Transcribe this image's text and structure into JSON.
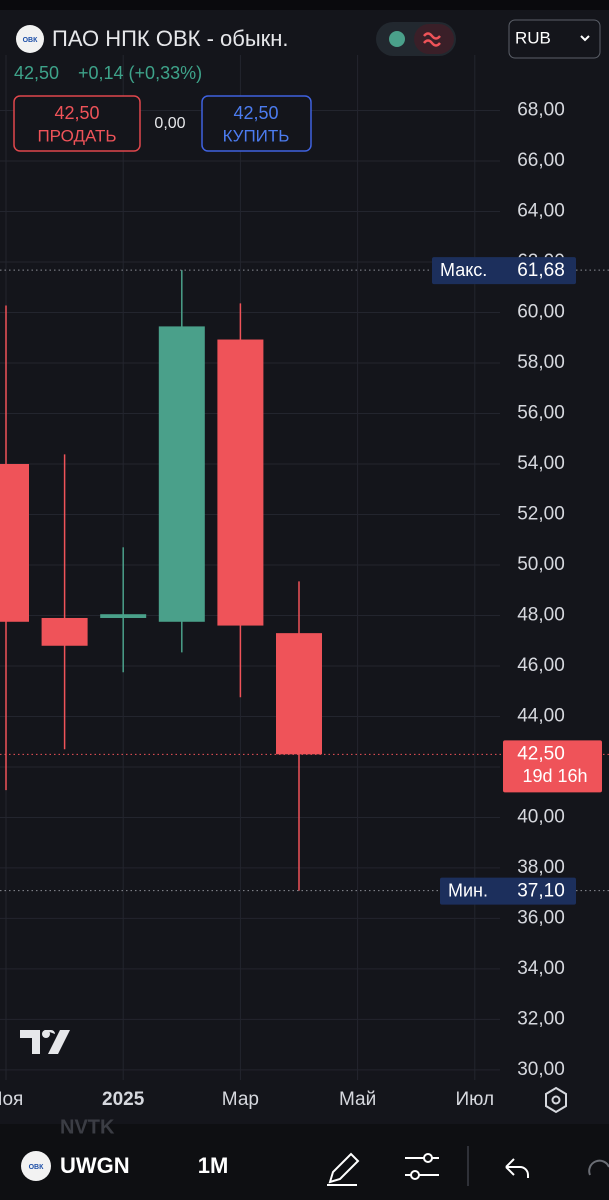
{
  "header": {
    "logo": "ОВК",
    "title": "ПАО НПК ОВК - обыкн.",
    "currency": "RUB",
    "price": "42,50",
    "change": "+0,14 (+0,33%)"
  },
  "trade": {
    "sell_price": "42,50",
    "sell_label": "ПРОДАТЬ",
    "spread": "0,00",
    "buy_price": "42,50",
    "buy_label": "КУПИТЬ"
  },
  "chart_data": {
    "type": "candlestick",
    "categories": [
      "Ноя",
      null,
      "2025",
      null,
      "Мар",
      null,
      "Май",
      null,
      "Июл"
    ],
    "open": [
      54.0,
      47.9,
      47.9,
      47.75,
      58.93,
      47.3,
      null,
      null,
      null
    ],
    "high": [
      60.28,
      54.38,
      50.7,
      61.68,
      60.36,
      49.35,
      null,
      null,
      null
    ],
    "low": [
      41.08,
      42.7,
      45.75,
      46.54,
      44.76,
      37.1,
      null,
      null,
      null
    ],
    "close": [
      47.75,
      46.8,
      48.05,
      59.45,
      47.6,
      42.5,
      null,
      null,
      null
    ],
    "up_color": "#4aa08a",
    "down_color": "#ef5359",
    "ylim": [
      29.6,
      70.2
    ],
    "yticks": [
      {
        "value": 30,
        "label": "30,00"
      },
      {
        "value": 32,
        "label": "32,00"
      },
      {
        "value": 34,
        "label": "34,00"
      },
      {
        "value": 36,
        "label": "36,00"
      },
      {
        "value": 38,
        "label": "38,00"
      },
      {
        "value": 40,
        "label": "40,00"
      },
      {
        "value": 42,
        "label": "42,00"
      },
      {
        "value": 44,
        "label": "44,00"
      },
      {
        "value": 46,
        "label": "46,00"
      },
      {
        "value": 48,
        "label": "48,00"
      },
      {
        "value": 50,
        "label": "50,00"
      },
      {
        "value": 52,
        "label": "52,00"
      },
      {
        "value": 54,
        "label": "54,00"
      },
      {
        "value": 56,
        "label": "56,00"
      },
      {
        "value": 58,
        "label": "58,00"
      },
      {
        "value": 60,
        "label": "60,00"
      },
      {
        "value": 62,
        "label": "62,00"
      },
      {
        "value": 64,
        "label": "64,00"
      },
      {
        "value": 66,
        "label": "66,00"
      },
      {
        "value": 68,
        "label": "68,00"
      }
    ],
    "grid": true,
    "max": {
      "label": "Макс.",
      "value": {
        "value": 61.68,
        "label": "61,68"
      }
    },
    "min": {
      "label": "Мин.",
      "value": {
        "value": 37.1,
        "label": "37,10"
      }
    },
    "last": {
      "value": {
        "value": 42.5,
        "label": "42,50"
      },
      "countdown": "19d 16h"
    }
  },
  "toolbar": {
    "ghost": "NVTK",
    "symbol": "UWGN",
    "interval": "1M"
  }
}
